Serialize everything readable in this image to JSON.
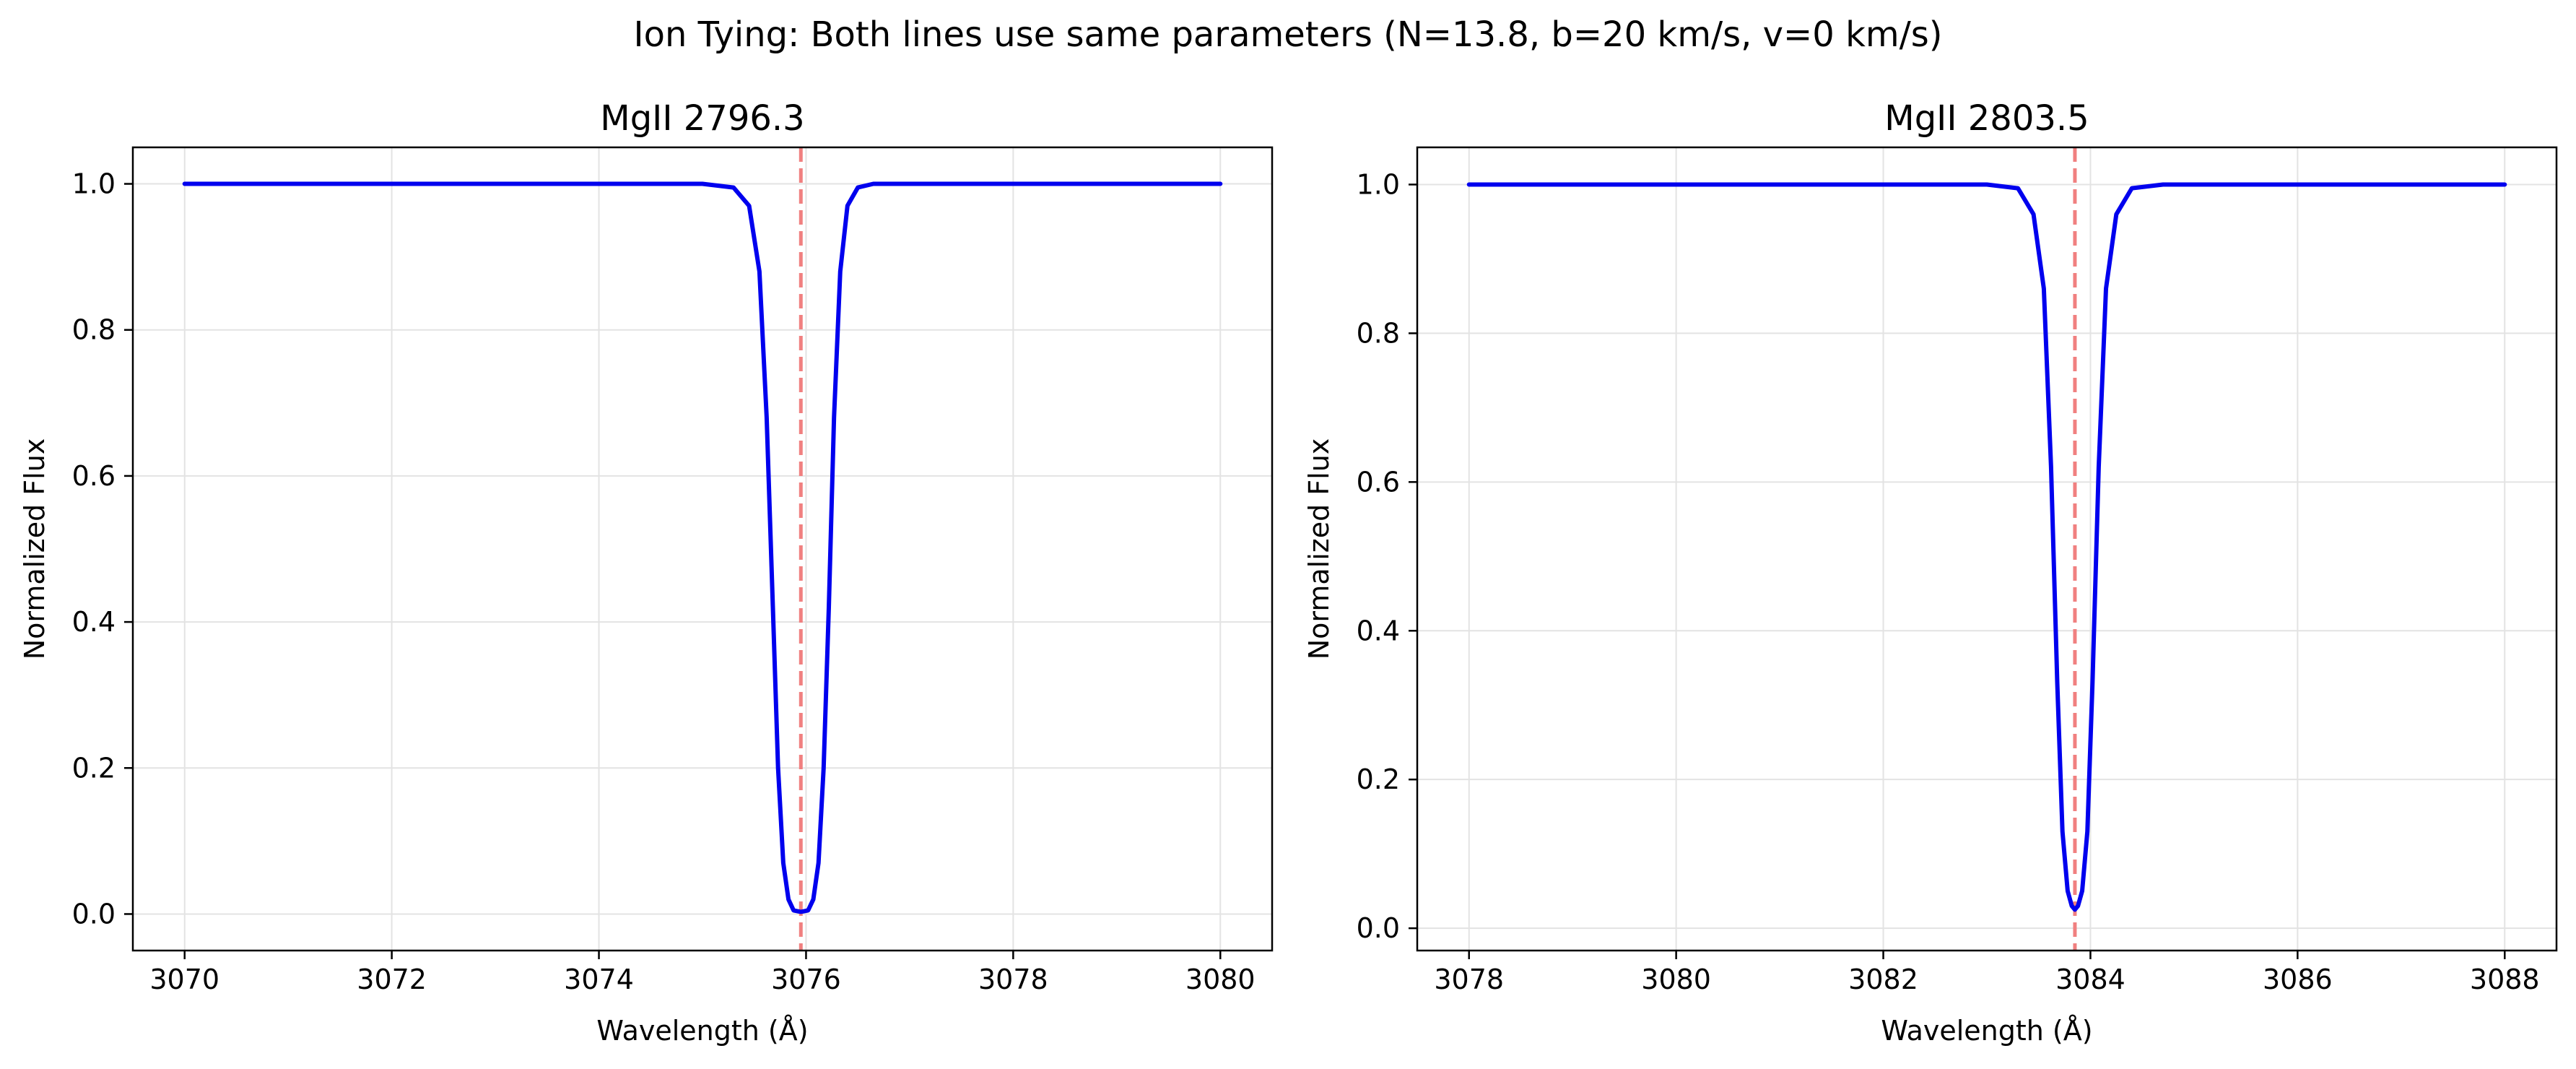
{
  "figure": {
    "suptitle": "Ion Tying: Both lines use same parameters (N=13.8, b=20 km/s, v=0 km/s)"
  },
  "colors": {
    "line": "#0000ee",
    "marker": "#f08080",
    "grid": "#e3e3e3",
    "axes": "#000000"
  },
  "chart_data": [
    {
      "type": "line",
      "title": "MgII 2796.3",
      "xlabel": "Wavelength (Å)",
      "ylabel": "Normalized Flux",
      "xlim": [
        3069.5,
        3080.5
      ],
      "ylim": [
        -0.05,
        1.05
      ],
      "xticks": [
        3070,
        3072,
        3074,
        3076,
        3078,
        3080
      ],
      "xtick_labels": [
        "3070",
        "3072",
        "3074",
        "3076",
        "3078",
        "3080"
      ],
      "yticks": [
        0.0,
        0.2,
        0.4,
        0.6,
        0.8,
        1.0
      ],
      "ytick_labels": [
        "0.0",
        "0.2",
        "0.4",
        "0.6",
        "0.8",
        "1.0"
      ],
      "grid": true,
      "reference_line_x": 3075.95,
      "series": [
        {
          "x": [
            3070,
            3075.0,
            3075.3,
            3075.45,
            3075.55,
            3075.62,
            3075.68,
            3075.73,
            3075.78,
            3075.83,
            3075.88,
            3075.95,
            3076.02,
            3076.07,
            3076.12,
            3076.17,
            3076.22,
            3076.27,
            3076.33,
            3076.4,
            3076.5,
            3076.65,
            3077.0,
            3080
          ],
          "y": [
            1.0,
            1.0,
            0.995,
            0.97,
            0.88,
            0.68,
            0.42,
            0.2,
            0.07,
            0.02,
            0.005,
            0.003,
            0.005,
            0.02,
            0.07,
            0.2,
            0.42,
            0.68,
            0.88,
            0.97,
            0.995,
            1.0,
            1.0,
            1.0
          ]
        }
      ]
    },
    {
      "type": "line",
      "title": "MgII 2803.5",
      "xlabel": "Wavelength (Å)",
      "ylabel": "Normalized Flux",
      "xlim": [
        3077.5,
        3088.5
      ],
      "ylim": [
        -0.03,
        1.05
      ],
      "xticks": [
        3078,
        3080,
        3082,
        3084,
        3086,
        3088
      ],
      "xtick_labels": [
        "3078",
        "3080",
        "3082",
        "3084",
        "3086",
        "3088"
      ],
      "yticks": [
        0.0,
        0.2,
        0.4,
        0.6,
        0.8,
        1.0
      ],
      "ytick_labels": [
        "0.0",
        "0.2",
        "0.4",
        "0.6",
        "0.8",
        "1.0"
      ],
      "grid": true,
      "reference_line_x": 3083.85,
      "series": [
        {
          "x": [
            3078,
            3083.0,
            3083.3,
            3083.45,
            3083.55,
            3083.62,
            3083.68,
            3083.73,
            3083.78,
            3083.82,
            3083.85,
            3083.88,
            3083.92,
            3083.97,
            3084.02,
            3084.08,
            3084.15,
            3084.25,
            3084.4,
            3084.7,
            3088
          ],
          "y": [
            1.0,
            1.0,
            0.995,
            0.96,
            0.86,
            0.62,
            0.33,
            0.13,
            0.05,
            0.03,
            0.025,
            0.03,
            0.05,
            0.13,
            0.33,
            0.62,
            0.86,
            0.96,
            0.995,
            1.0,
            1.0
          ]
        }
      ]
    }
  ]
}
